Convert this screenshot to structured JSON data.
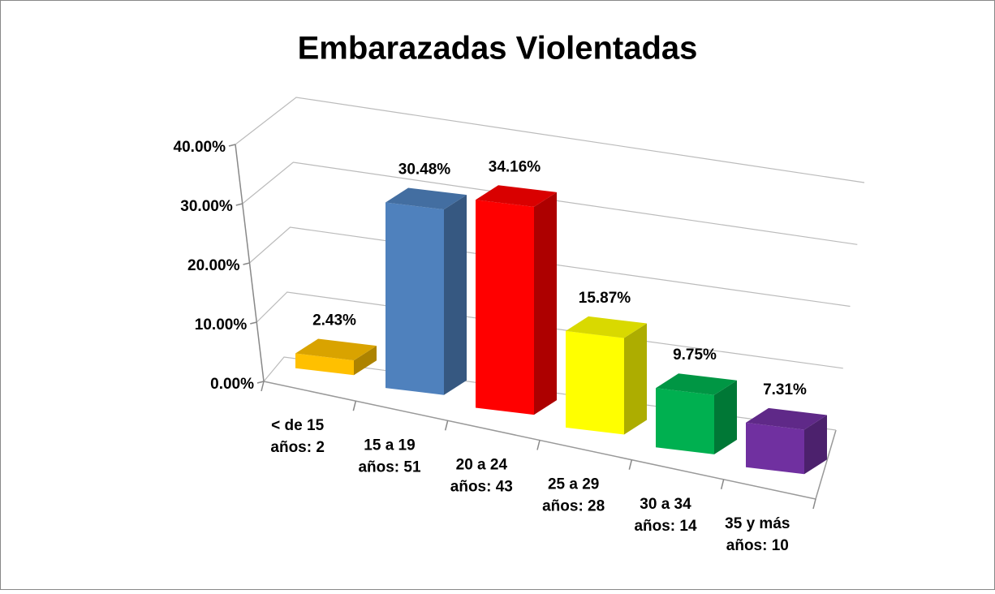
{
  "chart_data": {
    "type": "bar3d",
    "title": "Embarazadas Violentadas",
    "categories": [
      [
        "< de 15",
        "años: 2"
      ],
      [
        "15 a 19",
        "años: 51"
      ],
      [
        "20 a 24",
        "años: 43"
      ],
      [
        "25 a 29",
        "años: 28"
      ],
      [
        "30 a 34",
        "años: 14"
      ],
      [
        "35 y más",
        "años: 10"
      ]
    ],
    "values": [
      2.43,
      30.48,
      34.16,
      15.87,
      9.75,
      7.31
    ],
    "value_labels": [
      "2.43%",
      "30.48%",
      "34.16%",
      "15.87%",
      "9.75%",
      "7.31%"
    ],
    "colors": [
      "#ffc000",
      "#4f81bd",
      "#ff0000",
      "#ffff00",
      "#00b050",
      "#7030a0"
    ],
    "ylim": [
      0,
      40
    ],
    "yticks": [
      {
        "value": 0,
        "label": "0.00%"
      },
      {
        "value": 10,
        "label": "10.00%"
      },
      {
        "value": 20,
        "label": "20.00%"
      },
      {
        "value": 30,
        "label": "30.00%"
      },
      {
        "value": 40,
        "label": "40.00%"
      }
    ],
    "grid": true
  }
}
